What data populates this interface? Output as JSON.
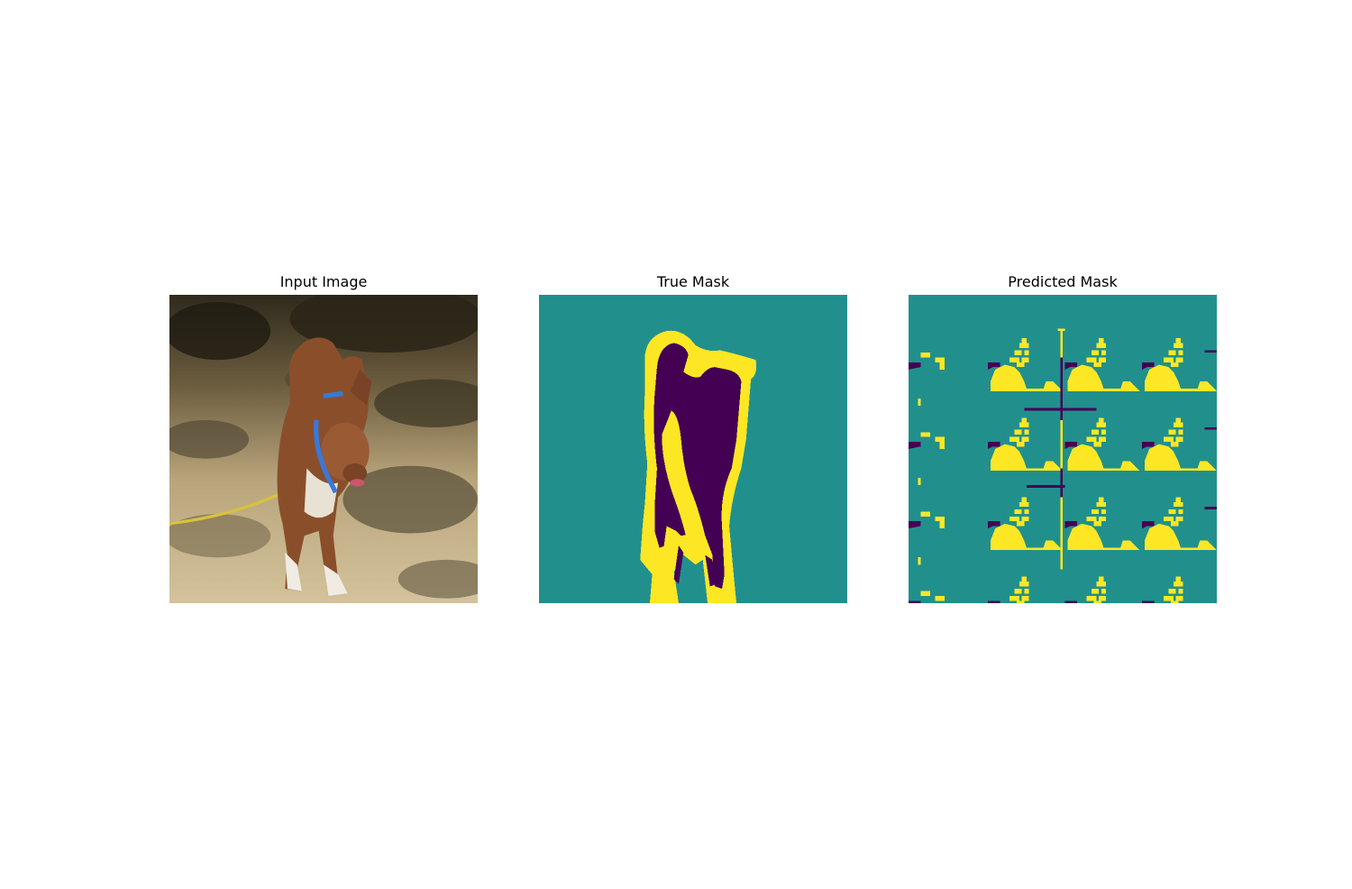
{
  "figure": {
    "panels": [
      {
        "title": "Input Image"
      },
      {
        "title": "True Mask"
      },
      {
        "title": "Predicted Mask"
      }
    ]
  },
  "colors": {
    "background_class": "#21908d",
    "boundary_class": "#fde725",
    "foreground_class": "#440154",
    "dog_fur": "#8a4f2a",
    "collar": "#3a78d8",
    "ground_light": "#c9b48a",
    "shadow": "#3b3524"
  }
}
